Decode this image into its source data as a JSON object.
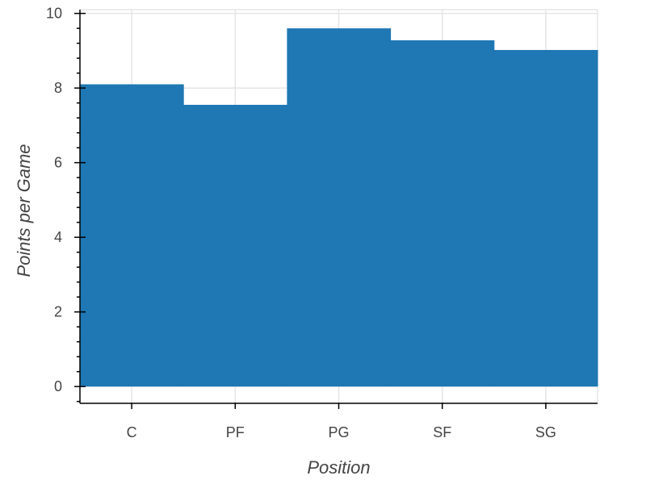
{
  "chart_data": {
    "type": "bar",
    "title": "",
    "xlabel": "Position",
    "ylabel": "Points per Game",
    "categories": [
      "C",
      "PF",
      "PG",
      "SF",
      "SG"
    ],
    "values": [
      8.1,
      7.55,
      9.6,
      9.28,
      9.02
    ],
    "ylim": [
      -0.45,
      10.1
    ],
    "yticks": [
      "0",
      "2",
      "4",
      "6",
      "8",
      "10"
    ],
    "grid": true,
    "legend": "none",
    "bar_color": "#1f77b4"
  }
}
